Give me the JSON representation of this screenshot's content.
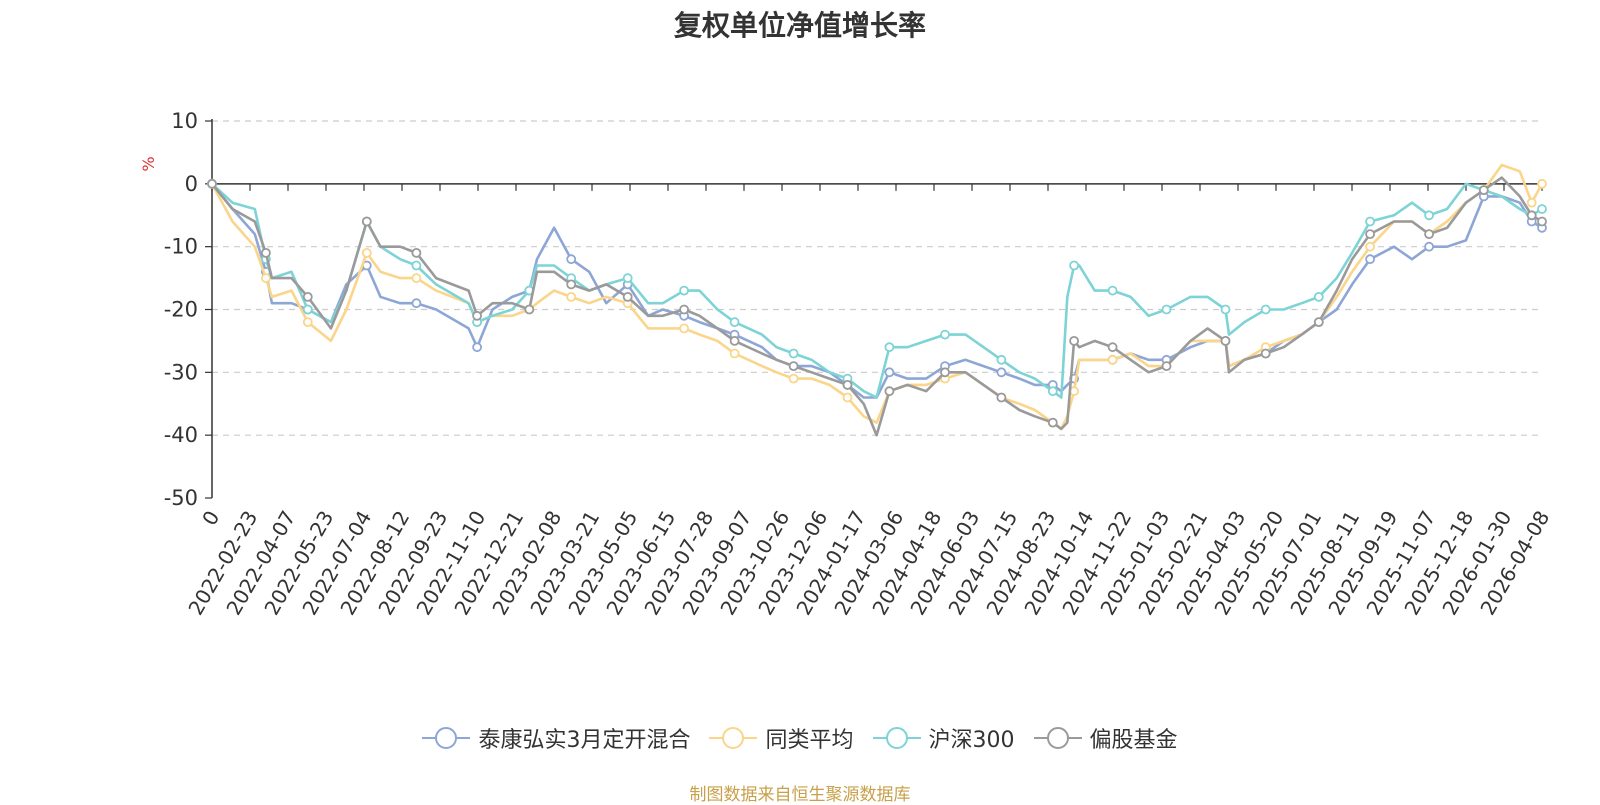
{
  "chart_data": {
    "type": "line",
    "title": "复权单位净值增长率",
    "ylabel": "%",
    "ylim": [
      -50,
      10
    ],
    "yticks": [
      10,
      0,
      -10,
      -20,
      -30,
      -40,
      -50
    ],
    "xlim": [
      "2022-01-04",
      "2026-04-08"
    ],
    "x_tick_labels": [
      "0",
      "2022-02-23",
      "2022-04-07",
      "2022-05-23",
      "2022-07-04",
      "2022-08-12",
      "2022-09-23",
      "2022-11-10",
      "2022-12-21",
      "2023-02-08",
      "2023-03-21",
      "2023-05-05",
      "2023-06-15",
      "2023-07-28",
      "2023-09-07",
      "2023-10-26",
      "2023-12-06",
      "2024-01-17",
      "2024-03-06",
      "2024-04-18",
      "2024-06-03",
      "2024-07-15",
      "2024-08-23",
      "2024-10-14",
      "2024-11-22",
      "2025-01-03",
      "2025-02-21",
      "2025-04-03",
      "2025-05-20",
      "2025-07-01",
      "2025-08-11",
      "2025-09-19",
      "2025-11-07",
      "2025-12-18",
      "2026-01-30",
      "2026-04-08"
    ],
    "grid": true,
    "legend_position": "bottom",
    "x": [
      "2022-01-04",
      "2022-01-28",
      "2022-02-23",
      "2022-03-08",
      "2022-03-15",
      "2022-04-07",
      "2022-04-26",
      "2022-05-23",
      "2022-06-10",
      "2022-07-04",
      "2022-07-20",
      "2022-08-12",
      "2022-08-31",
      "2022-09-23",
      "2022-10-31",
      "2022-11-10",
      "2022-11-28",
      "2022-12-21",
      "2023-01-10",
      "2023-01-19",
      "2023-02-08",
      "2023-02-28",
      "2023-03-21",
      "2023-04-10",
      "2023-05-05",
      "2023-05-29",
      "2023-06-15",
      "2023-07-10",
      "2023-07-28",
      "2023-08-18",
      "2023-09-07",
      "2023-10-09",
      "2023-10-26",
      "2023-11-15",
      "2023-12-06",
      "2023-12-27",
      "2024-01-17",
      "2024-02-05",
      "2024-02-20",
      "2024-03-06",
      "2024-03-27",
      "2024-04-18",
      "2024-05-10",
      "2024-06-03",
      "2024-06-24",
      "2024-07-15",
      "2024-08-05",
      "2024-08-23",
      "2024-09-13",
      "2024-09-23",
      "2024-09-30",
      "2024-10-08",
      "2024-10-14",
      "2024-11-01",
      "2024-11-22",
      "2024-12-13",
      "2025-01-03",
      "2025-01-24",
      "2025-02-21",
      "2025-03-13",
      "2025-04-03",
      "2025-04-07",
      "2025-04-25",
      "2025-05-20",
      "2025-06-10",
      "2025-07-01",
      "2025-07-21",
      "2025-08-11",
      "2025-08-29",
      "2025-09-19",
      "2025-10-17",
      "2025-11-07",
      "2025-11-27",
      "2025-12-18",
      "2026-01-09",
      "2026-01-30",
      "2026-02-20",
      "2026-03-13",
      "2026-03-27",
      "2026-04-08"
    ],
    "series": [
      {
        "name": "泰康弘实3月定开混合",
        "color": "#8ea6d6",
        "values": [
          0,
          -4,
          -8,
          -14,
          -19,
          -19,
          -20,
          -22,
          -16,
          -13,
          -18,
          -19,
          -19,
          -20,
          -23,
          -26,
          -20,
          -18,
          -17,
          -12,
          -7,
          -12,
          -14,
          -19,
          -16,
          -21,
          -20,
          -21,
          -22,
          -23,
          -24,
          -26,
          -28,
          -29,
          -29,
          -30,
          -32,
          -34,
          -34,
          -30,
          -31,
          -31,
          -29,
          -28,
          -29,
          -30,
          -31,
          -32,
          -32,
          -33,
          -32,
          -31,
          -28,
          -28,
          -28,
          -27,
          -28,
          -28,
          -26,
          -25,
          -25,
          -29,
          -28,
          -27,
          -25,
          -24,
          -22,
          -20,
          -16,
          -12,
          -10,
          -12,
          -10,
          -10,
          -9,
          -2,
          -2,
          -3,
          -6,
          -7
        ]
      },
      {
        "name": "同类平均",
        "color": "#fad58a",
        "values": [
          0,
          -6,
          -10,
          -15,
          -18,
          -17,
          -22,
          -25,
          -20,
          -11,
          -14,
          -15,
          -15,
          -17,
          -19,
          -22,
          -21,
          -21,
          -20,
          -19,
          -17,
          -18,
          -19,
          -18,
          -19,
          -23,
          -23,
          -23,
          -24,
          -25,
          -27,
          -29,
          -30,
          -31,
          -31,
          -32,
          -34,
          -37,
          -38,
          -33,
          -32,
          -32,
          -31,
          -30,
          -32,
          -34,
          -35,
          -36,
          -38,
          -39,
          -37,
          -33,
          -28,
          -28,
          -28,
          -27,
          -29,
          -29,
          -25,
          -25,
          -25,
          -29,
          -28,
          -26,
          -25,
          -24,
          -22,
          -18,
          -14,
          -10,
          -6,
          -6,
          -8,
          -6,
          -3,
          -1,
          3,
          2,
          -3,
          0
        ]
      },
      {
        "name": "沪深300",
        "color": "#7dd3d6",
        "values": [
          0,
          -3,
          -4,
          -12,
          -15,
          -14,
          -20,
          -22,
          -17,
          -6,
          -10,
          -12,
          -13,
          -16,
          -19,
          -22,
          -21,
          -20,
          -17,
          -13,
          -13,
          -15,
          -17,
          -16,
          -15,
          -19,
          -19,
          -17,
          -17,
          -20,
          -22,
          -24,
          -26,
          -27,
          -28,
          -30,
          -31,
          -33,
          -34,
          -26,
          -26,
          -25,
          -24,
          -24,
          -26,
          -28,
          -30,
          -31,
          -33,
          -34,
          -18,
          -13,
          -13,
          -17,
          -17,
          -18,
          -21,
          -20,
          -18,
          -18,
          -20,
          -24,
          -22,
          -20,
          -20,
          -19,
          -18,
          -15,
          -11,
          -6,
          -5,
          -3,
          -5,
          -4,
          0,
          -1,
          -2,
          -4,
          -5,
          -4
        ]
      },
      {
        "name": "偏股基金",
        "color": "#9a9a9a",
        "values": [
          0,
          -4,
          -6,
          -11,
          -15,
          -15,
          -18,
          -23,
          -17,
          -6,
          -10,
          -10,
          -11,
          -15,
          -17,
          -21,
          -19,
          -19,
          -20,
          -14,
          -14,
          -16,
          -17,
          -16,
          -18,
          -21,
          -21,
          -20,
          -21,
          -23,
          -25,
          -27,
          -28,
          -29,
          -30,
          -31,
          -32,
          -35,
          -40,
          -33,
          -32,
          -33,
          -30,
          -30,
          -32,
          -34,
          -36,
          -37,
          -38,
          -39,
          -38,
          -25,
          -26,
          -25,
          -26,
          -28,
          -30,
          -29,
          -25,
          -23,
          -25,
          -30,
          -28,
          -27,
          -26,
          -24,
          -22,
          -17,
          -12,
          -8,
          -6,
          -6,
          -8,
          -7,
          -3,
          -1,
          1,
          -2,
          -5,
          -6
        ]
      }
    ]
  },
  "source_note": "制图数据来自恒生聚源数据库"
}
